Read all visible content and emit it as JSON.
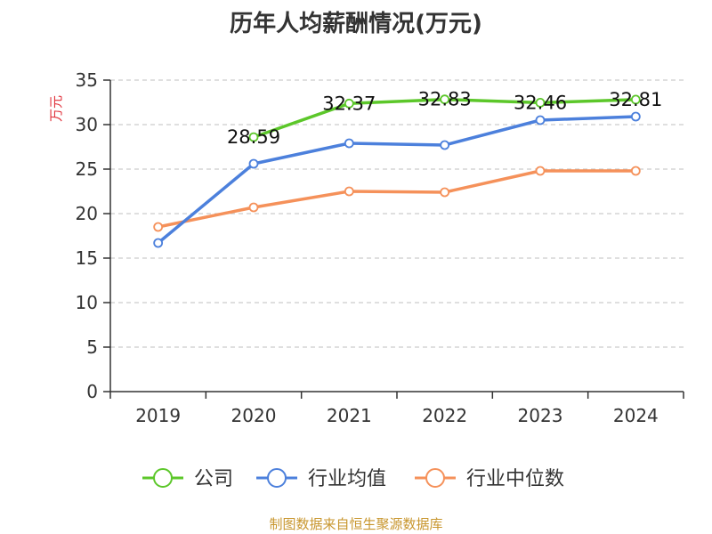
{
  "chart_data": {
    "type": "line",
    "title": "历年人均薪酬情况(万元)",
    "ylabel": "万元",
    "xlabel": "",
    "categories": [
      "2019",
      "2020",
      "2021",
      "2022",
      "2023",
      "2024"
    ],
    "ylim": [
      0,
      35
    ],
    "yticks": [
      0,
      5,
      10,
      15,
      20,
      25,
      30,
      35
    ],
    "grid": true,
    "legend_position": "bottom",
    "series": [
      {
        "name": "公司",
        "color": "#5cc72a",
        "values": [
          null,
          28.59,
          32.37,
          32.83,
          32.46,
          32.81
        ],
        "labels": [
          "",
          "28.59",
          "32.37",
          "32.83",
          "32.46",
          "32.81"
        ]
      },
      {
        "name": "行业均值",
        "color": "#4c80dc",
        "values": [
          16.7,
          25.6,
          27.9,
          27.7,
          30.5,
          30.9
        ]
      },
      {
        "name": "行业中位数",
        "color": "#f5915a",
        "values": [
          18.5,
          20.7,
          22.5,
          22.4,
          24.8,
          24.8
        ]
      }
    ]
  },
  "source": {
    "text": "制图数据来自恒生聚源数据库",
    "color": "#c8962e"
  },
  "colors": {
    "ylabel": "#e0303a",
    "axis": "#333333",
    "grid": "#cccccc"
  }
}
